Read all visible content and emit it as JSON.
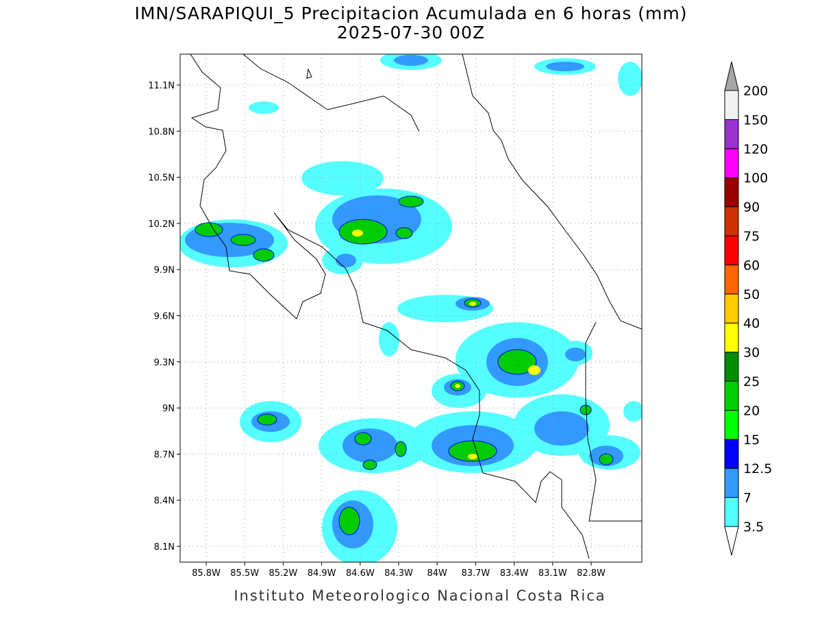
{
  "title": "IMN/SARAPIQUI_5 Precipitacion Acumulada en 6 horas (mm)",
  "subtitle": "2025-07-30 00Z",
  "map": {
    "lon_ticks": [
      "85.8W",
      "85.5W",
      "85.2W",
      "84.9W",
      "84.6W",
      "84.3W",
      "84W",
      "83.7W",
      "83.4W",
      "83.1W",
      "82.8W"
    ],
    "lat_ticks": [
      "11.1N",
      "10.8N",
      "10.5N",
      "10.2N",
      "9.9N",
      "9.6N",
      "9.3N",
      "9N",
      "8.7N",
      "8.4N",
      "8.1N"
    ],
    "grid": true
  },
  "colorbar": {
    "levels": [
      "3.5",
      "7",
      "12.5",
      "15",
      "20",
      "25",
      "30",
      "40",
      "50",
      "60",
      "75",
      "90",
      "100",
      "120",
      "150",
      "200"
    ],
    "colors": [
      "#55ffff",
      "#3399ff",
      "#0000ff",
      "#00ff00",
      "#00cc00",
      "#008c00",
      "#ffff00",
      "#ffcc00",
      "#ff6600",
      "#ff0000",
      "#cc3300",
      "#990000",
      "#ff00ff",
      "#9933cc",
      "#f2f2f2"
    ],
    "under_color": "#ffffff",
    "over_color": "#a6a6a6"
  },
  "footer": "Instituto Meteorologico Nacional Costa Rica"
}
